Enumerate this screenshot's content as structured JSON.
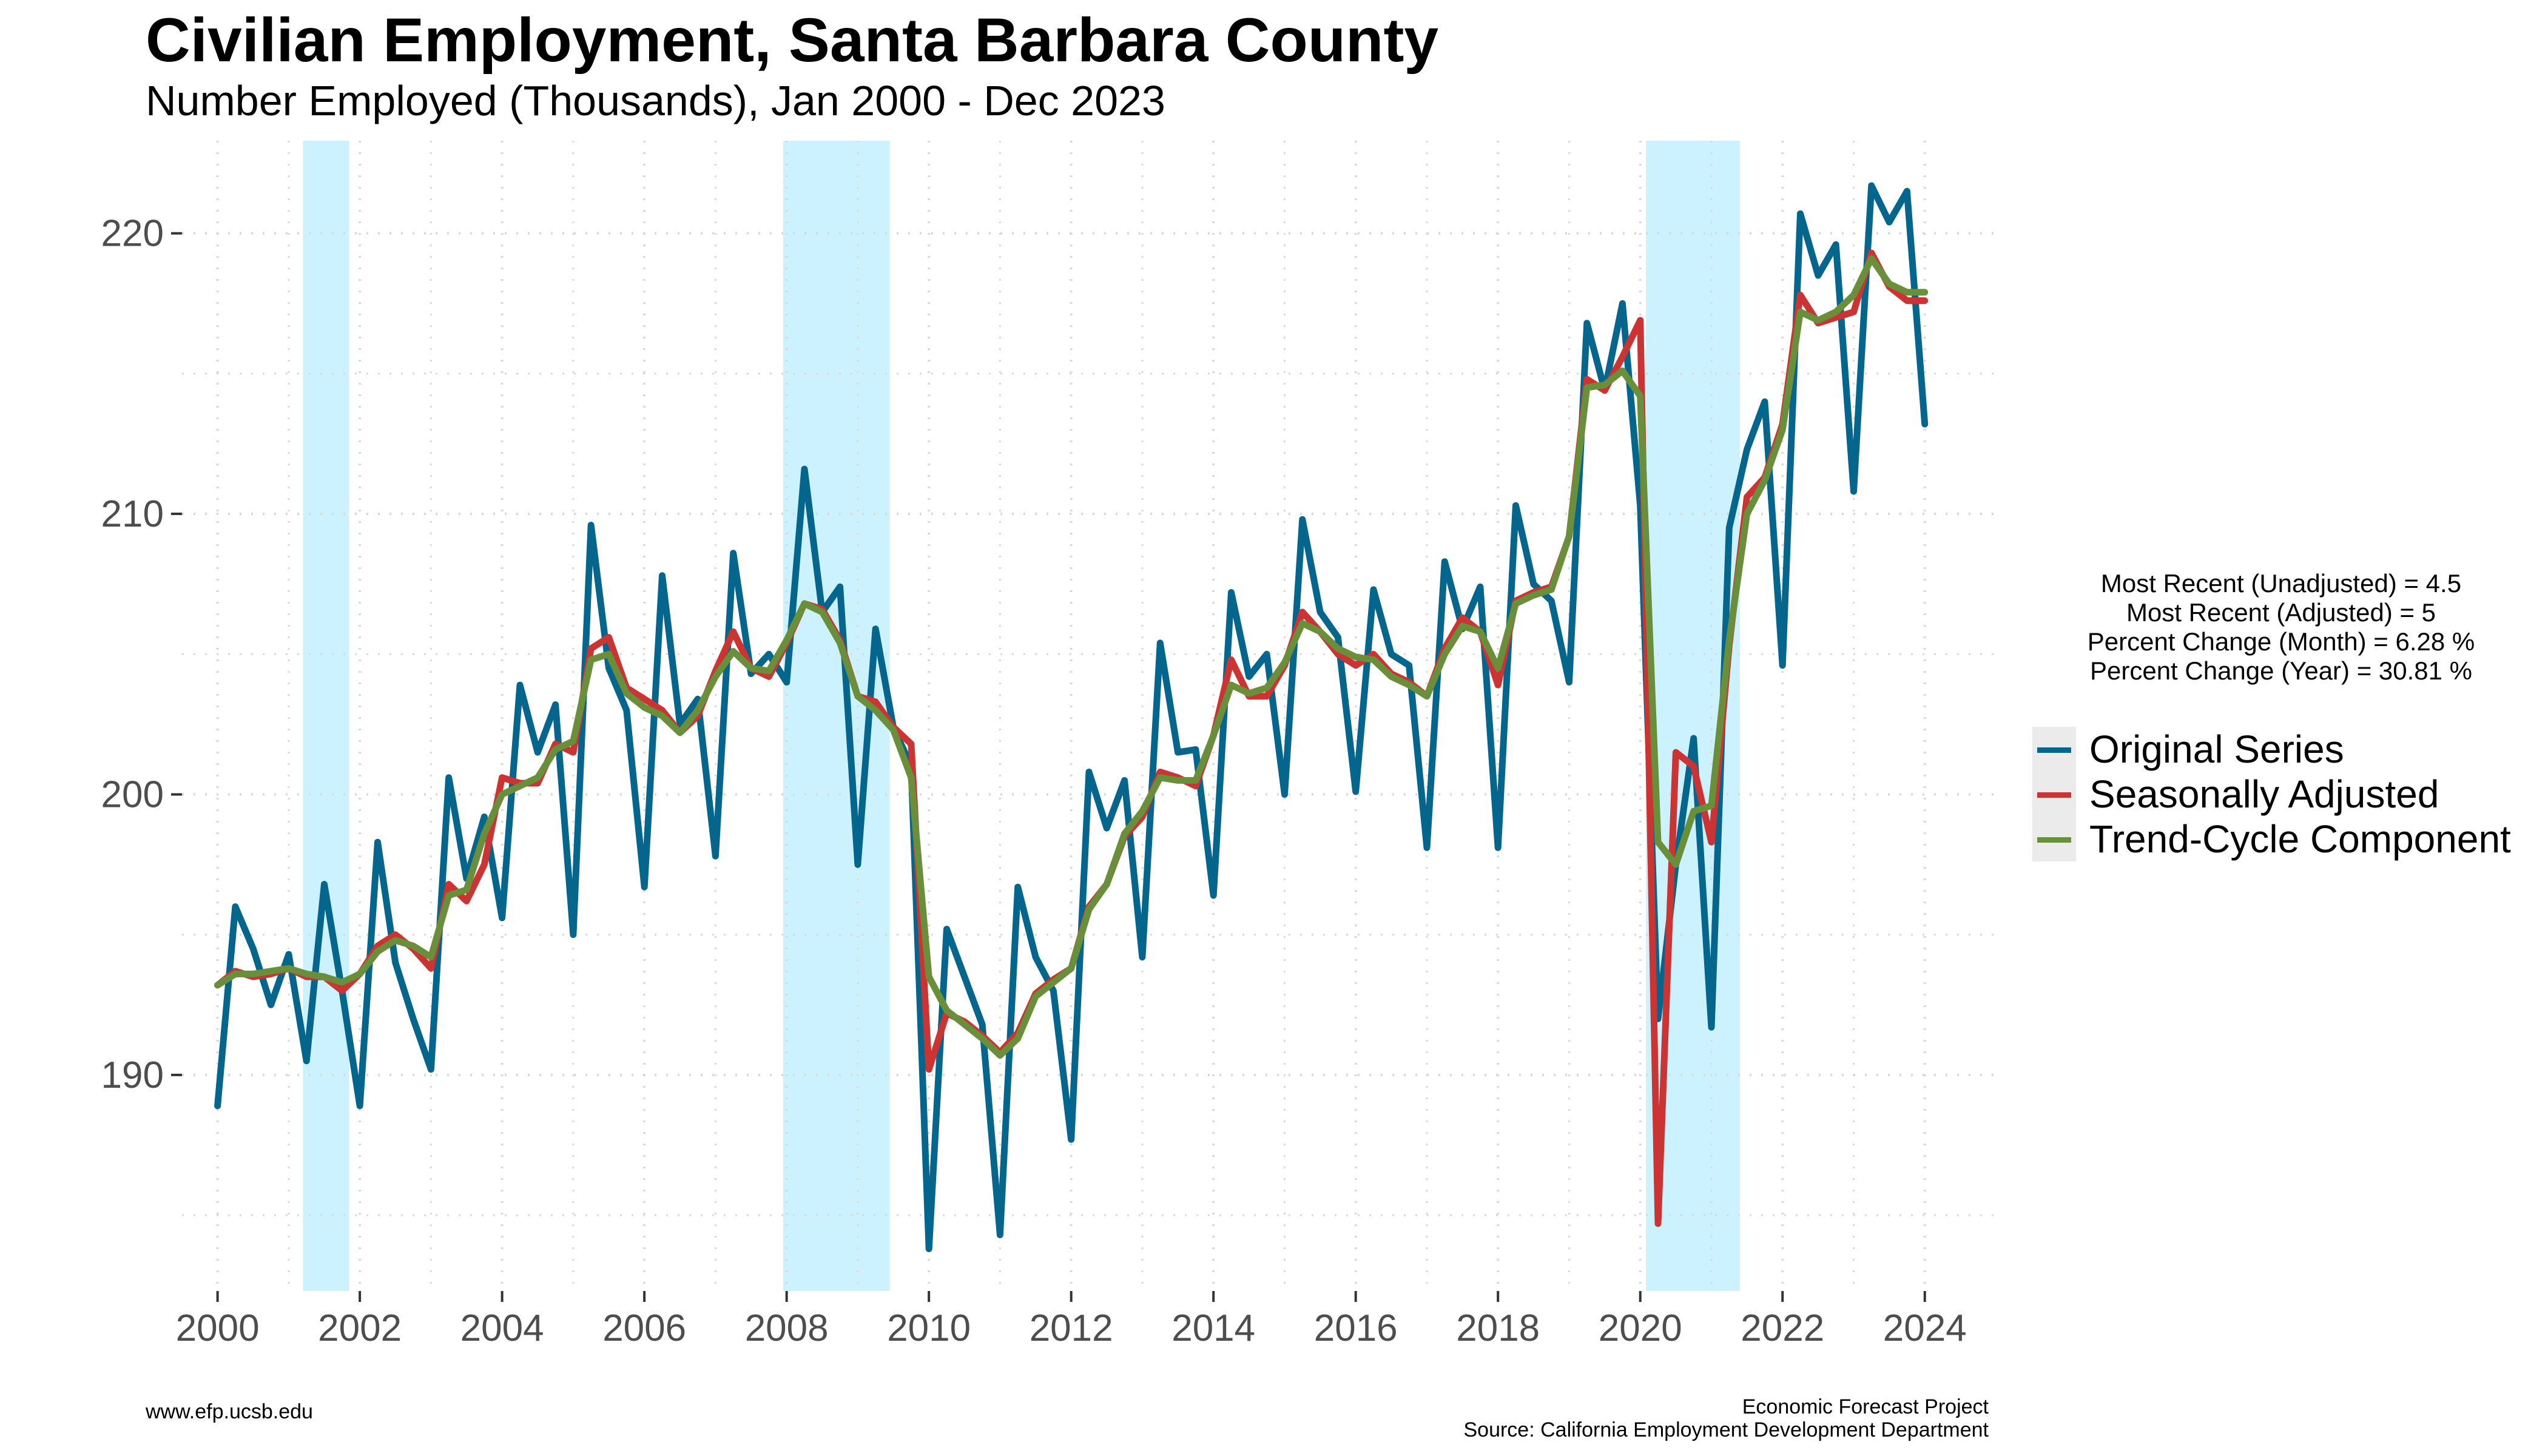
{
  "chart_data": {
    "type": "line",
    "title": "Civilian Employment, Santa Barbara County",
    "subtitle": "Number Employed (Thousands), Jan 2000 - Dec 2023",
    "xlabel": "",
    "ylabel": "",
    "xlim": [
      2000,
      2024
    ],
    "ylim": [
      183,
      222
    ],
    "x_ticks": [
      2000,
      2002,
      2004,
      2006,
      2008,
      2010,
      2012,
      2014,
      2016,
      2018,
      2020,
      2022,
      2024
    ],
    "x_tick_labels": [
      "2000",
      "2002",
      "2004",
      "2006",
      "2008",
      "2010",
      "2012",
      "2014",
      "2016",
      "2018",
      "2020",
      "2022",
      "2024"
    ],
    "y_ticks": [
      190,
      200,
      210,
      220
    ],
    "y_tick_labels": [
      "190",
      "200",
      "210",
      "220"
    ],
    "grid": true,
    "legend_position": "right",
    "recession_periods": [
      [
        2001.2,
        2001.85
      ],
      [
        2007.95,
        2009.45
      ],
      [
        2020.08,
        2021.4
      ]
    ],
    "x": [
      2000.0,
      2000.25,
      2000.5,
      2000.75,
      2001.0,
      2001.25,
      2001.5,
      2001.75,
      2002.0,
      2002.25,
      2002.5,
      2002.75,
      2003.0,
      2003.25,
      2003.5,
      2003.75,
      2004.0,
      2004.25,
      2004.5,
      2004.75,
      2005.0,
      2005.25,
      2005.5,
      2005.75,
      2006.0,
      2006.25,
      2006.5,
      2006.75,
      2007.0,
      2007.25,
      2007.5,
      2007.75,
      2008.0,
      2008.25,
      2008.5,
      2008.75,
      2009.0,
      2009.25,
      2009.5,
      2009.75,
      2010.0,
      2010.25,
      2010.5,
      2010.75,
      2011.0,
      2011.25,
      2011.5,
      2011.75,
      2012.0,
      2012.25,
      2012.5,
      2012.75,
      2013.0,
      2013.25,
      2013.5,
      2013.75,
      2014.0,
      2014.25,
      2014.5,
      2014.75,
      2015.0,
      2015.25,
      2015.5,
      2015.75,
      2016.0,
      2016.25,
      2016.5,
      2016.75,
      2017.0,
      2017.25,
      2017.5,
      2017.75,
      2018.0,
      2018.25,
      2018.5,
      2018.75,
      2019.0,
      2019.25,
      2019.5,
      2019.75,
      2020.0,
      2020.25,
      2020.5,
      2020.75,
      2021.0,
      2021.25,
      2021.5,
      2021.75,
      2022.0,
      2022.25,
      2022.5,
      2022.75,
      2023.0,
      2023.25,
      2023.5,
      2023.75,
      2024.0
    ],
    "series": [
      {
        "name": "Original Series",
        "color": "#05668d",
        "values": [
          188.9,
          196.0,
          194.5,
          192.5,
          194.3,
          190.5,
          196.8,
          193.0,
          188.9,
          198.3,
          194.0,
          192.0,
          190.2,
          200.6,
          197.0,
          199.2,
          195.6,
          203.9,
          201.5,
          203.2,
          195.0,
          209.6,
          204.5,
          203.0,
          196.7,
          207.8,
          202.5,
          203.4,
          197.8,
          208.6,
          204.3,
          205.0,
          204.0,
          211.6,
          206.5,
          207.4,
          197.5,
          205.9,
          202.4,
          201.0,
          183.8,
          195.2,
          193.5,
          191.8,
          184.3,
          196.7,
          194.2,
          193.0,
          187.7,
          200.8,
          198.8,
          200.5,
          194.2,
          205.4,
          201.5,
          201.6,
          196.4,
          207.2,
          204.2,
          205.0,
          200.0,
          209.8,
          206.5,
          205.6,
          200.1,
          207.3,
          205.0,
          204.6,
          198.1,
          208.3,
          205.9,
          207.4,
          198.1,
          210.3,
          207.5,
          206.9,
          204.0,
          216.8,
          214.4,
          217.5,
          210.3,
          192.0,
          197.5,
          202.0,
          191.7,
          209.5,
          212.3,
          214.0,
          204.6,
          220.7,
          218.5,
          219.6,
          210.8,
          221.7,
          220.4,
          221.5,
          213.2
        ]
      },
      {
        "name": "Seasonally Adjusted",
        "color": "#cc3333",
        "values": [
          193.2,
          193.7,
          193.5,
          193.6,
          193.8,
          193.5,
          193.5,
          193.0,
          193.6,
          194.6,
          195.0,
          194.5,
          193.8,
          196.8,
          196.2,
          197.5,
          200.6,
          200.4,
          200.4,
          201.8,
          201.5,
          205.2,
          205.6,
          203.8,
          203.4,
          203.0,
          202.2,
          202.8,
          204.4,
          205.8,
          204.5,
          204.2,
          205.4,
          206.8,
          206.6,
          205.5,
          203.5,
          203.3,
          202.4,
          201.8,
          190.2,
          192.2,
          191.9,
          191.4,
          190.8,
          191.5,
          192.9,
          193.4,
          193.8,
          196.0,
          196.8,
          198.5,
          199.2,
          200.8,
          200.6,
          200.3,
          202.1,
          204.8,
          203.5,
          203.5,
          204.6,
          206.5,
          205.8,
          205.0,
          204.6,
          205.0,
          204.3,
          204.0,
          203.5,
          205.2,
          206.3,
          205.8,
          203.9,
          206.9,
          207.2,
          207.4,
          209.2,
          214.8,
          214.4,
          215.6,
          216.9,
          184.7,
          201.5,
          201.0,
          198.3,
          205.3,
          210.6,
          211.3,
          213.2,
          217.8,
          216.8,
          217.0,
          217.2,
          219.3,
          218.1,
          217.6,
          217.6
        ]
      },
      {
        "name": "Trend-Cycle Component",
        "color": "#6a8f3b",
        "values": [
          193.2,
          193.6,
          193.6,
          193.7,
          193.8,
          193.6,
          193.5,
          193.3,
          193.6,
          194.4,
          194.8,
          194.6,
          194.2,
          196.4,
          196.6,
          198.6,
          200.0,
          200.3,
          200.6,
          201.6,
          201.9,
          204.8,
          205.0,
          203.6,
          203.1,
          202.8,
          202.2,
          203.0,
          204.2,
          205.1,
          204.5,
          204.4,
          205.5,
          206.8,
          206.5,
          205.4,
          203.5,
          203.0,
          202.3,
          200.6,
          193.5,
          192.3,
          191.8,
          191.3,
          190.7,
          191.3,
          192.8,
          193.3,
          193.8,
          195.9,
          196.8,
          198.6,
          199.4,
          200.6,
          200.5,
          200.5,
          202.1,
          203.9,
          203.6,
          203.8,
          204.7,
          206.1,
          205.8,
          205.2,
          204.9,
          204.8,
          204.2,
          203.9,
          203.5,
          205.0,
          206.0,
          205.8,
          204.5,
          206.8,
          207.1,
          207.3,
          209.2,
          214.5,
          214.6,
          215.1,
          214.2,
          198.3,
          197.5,
          199.4,
          199.6,
          205.5,
          210.0,
          211.2,
          213.0,
          217.2,
          216.9,
          217.2,
          217.8,
          219.1,
          218.2,
          217.9,
          217.9
        ]
      }
    ]
  },
  "stats": {
    "line1": "Most Recent (Unadjusted) = 4.5",
    "line2": "Most Recent (Adjusted) = 5",
    "line3": "Percent Change (Month) = 6.28 %",
    "line4": "Percent Change (Year) = 30.81 %"
  },
  "footer": {
    "left": "www.efp.ucsb.edu",
    "right_line1": "Economic Forecast Project",
    "right_line2": "Source: California Employment Development Department"
  },
  "colors": {
    "recession": "#ccf2ff",
    "grid": "#d9d9d9"
  }
}
